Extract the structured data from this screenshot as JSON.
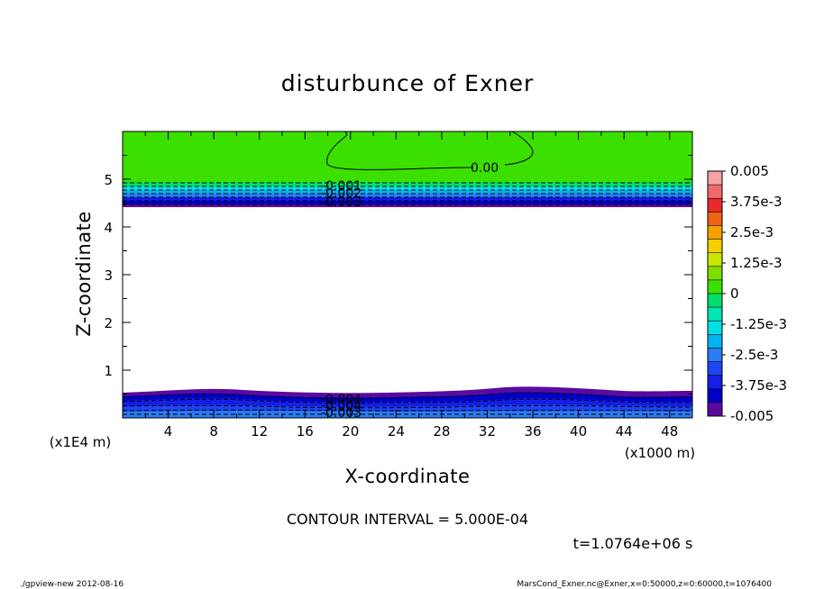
{
  "chart_data": {
    "type": "heatmap",
    "title": "disturbunce of Exner",
    "xlabel": "X-coordinate",
    "ylabel": "Z-coordinate",
    "x_unit": "(x1000 m)",
    "y_unit": "(x1E4 m)",
    "xlim": [
      0,
      50
    ],
    "ylim": [
      0,
      6
    ],
    "x_ticks": [
      "4",
      "8",
      "12",
      "16",
      "20",
      "24",
      "28",
      "32",
      "36",
      "40",
      "44",
      "48"
    ],
    "y_ticks": [
      "1",
      "2",
      "3",
      "4",
      "5"
    ],
    "colorbar": {
      "labels": [
        "0.005",
        "3.75e-3",
        "2.5e-3",
        "1.25e-3",
        "0",
        "-1.25e-3",
        "-2.5e-3",
        "-3.75e-3",
        "-0.005"
      ],
      "colors": [
        "#f5a3a3",
        "#f06a6a",
        "#e82a2a",
        "#f06414",
        "#f5a000",
        "#f5d000",
        "#c8e600",
        "#7de000",
        "#3ce000",
        "#00e068",
        "#00e6b4",
        "#00e0e6",
        "#00b4f0",
        "#2a7df5",
        "#1e46f0",
        "#141ee6",
        "#0000c8",
        "#5a0aa0"
      ]
    },
    "contour_labels": [
      "0.00",
      "-0.001",
      "-0.002",
      "-0.003",
      "-0.004",
      "-0.004",
      "-0.003"
    ],
    "contour_interval_text": "CONTOUR INTERVAL = 5.000E-04",
    "time_text": "t=1.0764e+06 s"
  },
  "footer": {
    "left": "./gpview-new   2012-08-16",
    "right": "MarsCond_Exner.nc@Exner,x=0:50000,z=0:60000,t=1076400"
  }
}
